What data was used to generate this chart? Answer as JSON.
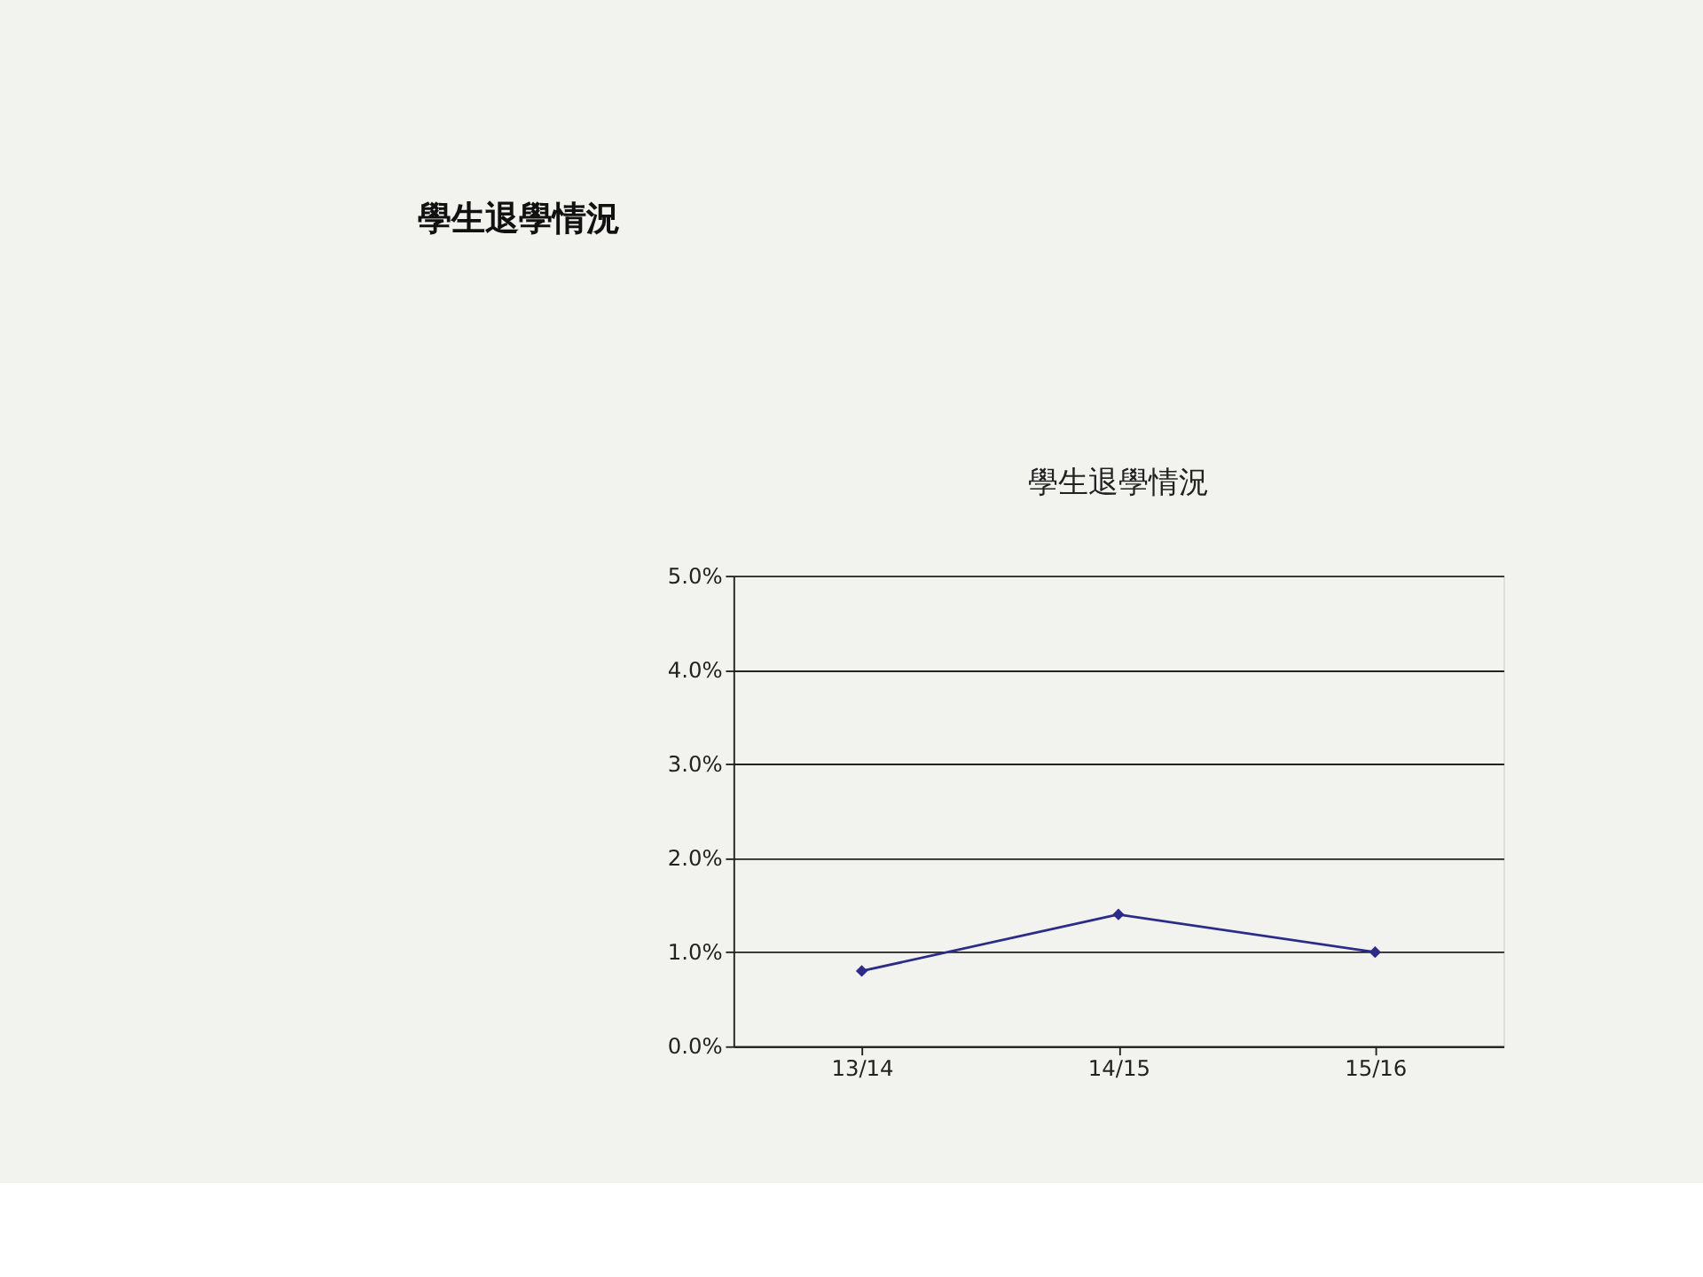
{
  "chart_data": {
    "type": "line",
    "title": "學生退學情況",
    "subtitle": "學生退學情況",
    "categories": [
      "13/14",
      "14/15",
      "15/16"
    ],
    "series": [
      {
        "color": "#2b2b8c",
        "values": [
          0.8,
          1.4,
          1.0
        ]
      }
    ],
    "ylim": [
      0,
      5
    ],
    "yticks": [
      {
        "value": 0,
        "label": "0.0%"
      },
      {
        "value": 1,
        "label": "1.0%"
      },
      {
        "value": 2,
        "label": "2.0%"
      },
      {
        "value": 3,
        "label": "3.0%"
      },
      {
        "value": 4,
        "label": "4.0%"
      },
      {
        "value": 5,
        "label": "5.0%"
      }
    ],
    "grid": "y",
    "marker": "diamond",
    "line_style": "solid"
  }
}
